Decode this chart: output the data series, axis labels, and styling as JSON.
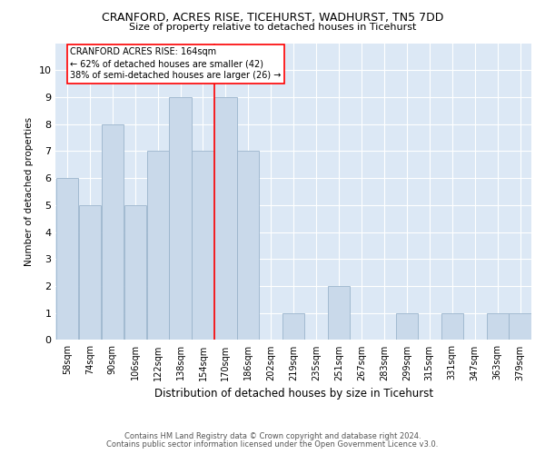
{
  "title": "CRANFORD, ACRES RISE, TICEHURST, WADHURST, TN5 7DD",
  "subtitle": "Size of property relative to detached houses in Ticehurst",
  "xlabel": "Distribution of detached houses by size in Ticehurst",
  "ylabel": "Number of detached properties",
  "categories": [
    "58sqm",
    "74sqm",
    "90sqm",
    "106sqm",
    "122sqm",
    "138sqm",
    "154sqm",
    "170sqm",
    "186sqm",
    "202sqm",
    "219sqm",
    "235sqm",
    "251sqm",
    "267sqm",
    "283sqm",
    "299sqm",
    "315sqm",
    "331sqm",
    "347sqm",
    "363sqm",
    "379sqm"
  ],
  "values": [
    6,
    5,
    8,
    5,
    7,
    9,
    7,
    9,
    7,
    0,
    1,
    0,
    2,
    0,
    0,
    1,
    0,
    1,
    0,
    1,
    1
  ],
  "bar_color": "#c9d9ea",
  "bar_edgecolor": "#9ab4cc",
  "property_line_label": "CRANFORD ACRES RISE: 164sqm",
  "annotation_line1": "← 62% of detached houses are smaller (42)",
  "annotation_line2": "38% of semi-detached houses are larger (26) →",
  "ylim": [
    0,
    11
  ],
  "yticks": [
    0,
    1,
    2,
    3,
    4,
    5,
    6,
    7,
    8,
    9,
    10,
    11
  ],
  "footer1": "Contains HM Land Registry data © Crown copyright and database right 2024.",
  "footer2": "Contains public sector information licensed under the Open Government Licence v3.0.",
  "fig_bg_color": "#ffffff",
  "plot_bg_color": "#dce8f5"
}
